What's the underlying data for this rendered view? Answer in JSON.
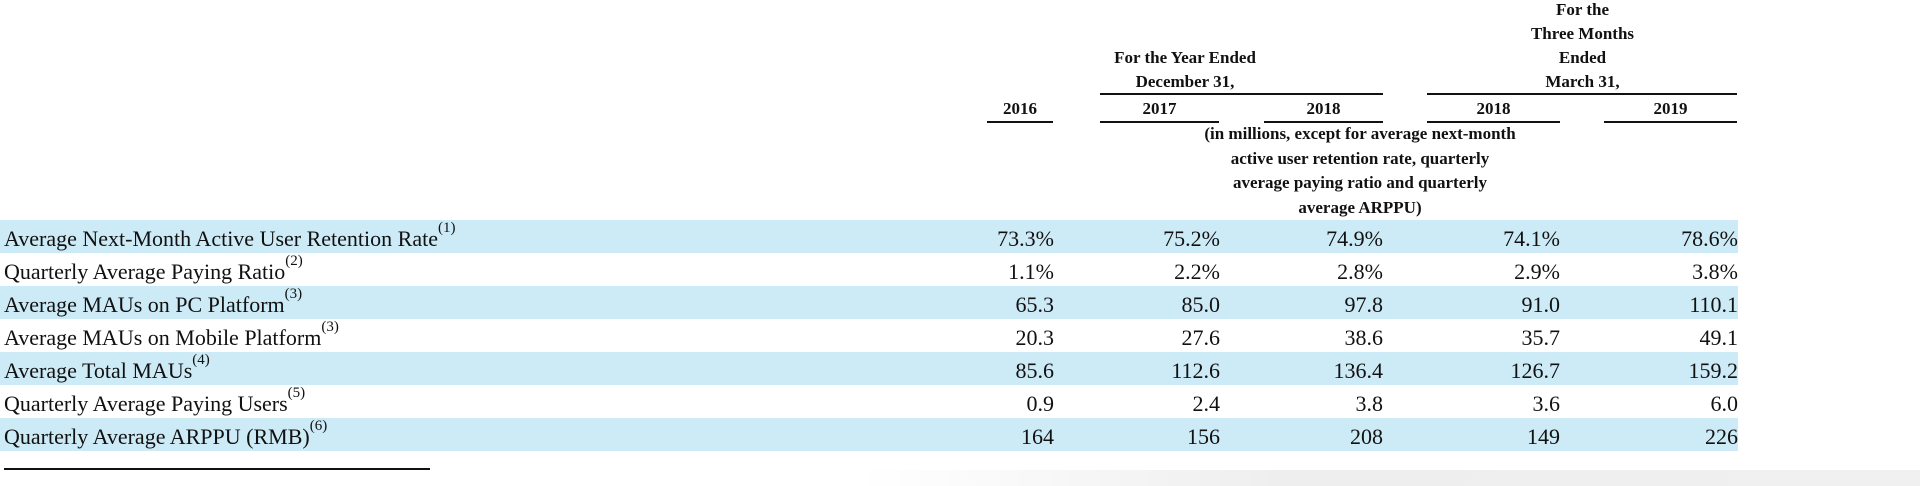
{
  "header": {
    "year_group": [
      "For the Year Ended",
      "December 31,"
    ],
    "quarter_group": [
      "For the",
      "Three Months",
      "Ended",
      "March 31,"
    ],
    "columns": [
      "2016",
      "2017",
      "2018",
      "2018",
      "2019"
    ],
    "unit_note": [
      "(in millions, except for average next-month",
      "active user retention rate, quarterly",
      "average paying ratio and quarterly",
      "average ARPPU)"
    ]
  },
  "rows": [
    {
      "label": "Average Next-Month Active User Retention Rate",
      "note": "(1)",
      "values": [
        "73.3%",
        "75.2%",
        "74.9%",
        "74.1%",
        "78.6%"
      ]
    },
    {
      "label": "Quarterly Average Paying Ratio",
      "note": "(2)",
      "values": [
        "1.1%",
        "2.2%",
        "2.8%",
        "2.9%",
        "3.8%"
      ]
    },
    {
      "label": "Average MAUs on PC Platform",
      "note": "(3)",
      "values": [
        "65.3",
        "85.0",
        "97.8",
        "91.0",
        "110.1"
      ]
    },
    {
      "label": "Average MAUs on Mobile Platform",
      "note": "(3)",
      "values": [
        "20.3",
        "27.6",
        "38.6",
        "35.7",
        "49.1"
      ]
    },
    {
      "label": "Average Total MAUs",
      "note": "(4)",
      "values": [
        "85.6",
        "112.6",
        "136.4",
        "126.7",
        "159.2"
      ]
    },
    {
      "label": "Quarterly Average Paying Users",
      "note": "(5)",
      "values": [
        "0.9",
        "2.4",
        "3.8",
        "3.6",
        "6.0"
      ]
    },
    {
      "label": "Quarterly Average ARPPU (RMB)",
      "note": "(6)",
      "values": [
        "164",
        "156",
        "208",
        "149",
        "226"
      ]
    }
  ],
  "colors": {
    "row_shade": "#cdeaf7",
    "text": "#111111"
  }
}
